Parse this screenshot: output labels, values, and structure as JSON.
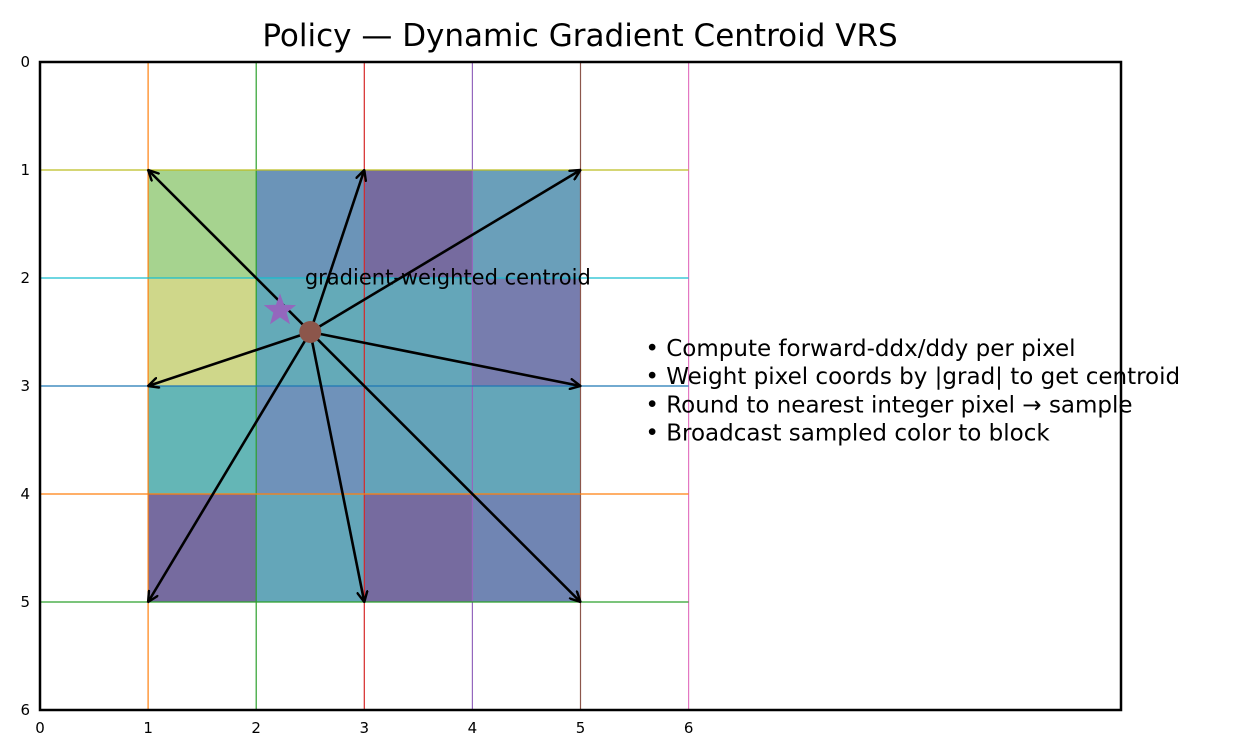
{
  "chart_data": {
    "type": "diagram",
    "title": "Policy — Dynamic Gradient Centroid VRS",
    "xlim": [
      0,
      10
    ],
    "ylim": [
      6,
      0
    ],
    "x_ticks": [
      "0",
      "1",
      "2",
      "3",
      "4",
      "5",
      "6"
    ],
    "y_ticks": [
      "0",
      "1",
      "2",
      "3",
      "4",
      "5",
      "6"
    ],
    "grid_lines": {
      "vertical": [
        {
          "x": 1,
          "color": "#ff7f0e"
        },
        {
          "x": 2,
          "color": "#2ca02c"
        },
        {
          "x": 3,
          "color": "#d62728"
        },
        {
          "x": 4,
          "color": "#9467bd"
        },
        {
          "x": 5,
          "color": "#8c564b"
        },
        {
          "x": 6,
          "color": "#e377c2"
        }
      ],
      "horizontal": [
        {
          "y": 1,
          "color": "#bcbd22"
        },
        {
          "y": 2,
          "color": "#17becf"
        },
        {
          "y": 3,
          "color": "#1f77b4"
        },
        {
          "y": 4,
          "color": "#ff7f0e"
        },
        {
          "y": 5,
          "color": "#2ca02c"
        }
      ],
      "extent": [
        0,
        6
      ]
    },
    "block_cells": [
      {
        "col": 1,
        "row": 1,
        "color": "#a6d38f"
      },
      {
        "col": 2,
        "row": 1,
        "color": "#6b94b8"
      },
      {
        "col": 3,
        "row": 1,
        "color": "#766b9f"
      },
      {
        "col": 4,
        "row": 1,
        "color": "#6a9fba"
      },
      {
        "col": 1,
        "row": 2,
        "color": "#cfd78a"
      },
      {
        "col": 2,
        "row": 2,
        "color": "#64aab8"
      },
      {
        "col": 3,
        "row": 2,
        "color": "#64a6b9"
      },
      {
        "col": 4,
        "row": 2,
        "color": "#777dae"
      },
      {
        "col": 1,
        "row": 3,
        "color": "#64b6b6"
      },
      {
        "col": 2,
        "row": 3,
        "color": "#6f92ba"
      },
      {
        "col": 3,
        "row": 3,
        "color": "#64a3b9"
      },
      {
        "col": 4,
        "row": 3,
        "color": "#64a6b9"
      },
      {
        "col": 1,
        "row": 4,
        "color": "#766b9f"
      },
      {
        "col": 2,
        "row": 4,
        "color": "#64a6b9"
      },
      {
        "col": 3,
        "row": 4,
        "color": "#766b9f"
      },
      {
        "col": 4,
        "row": 4,
        "color": "#7085b3"
      }
    ],
    "center": {
      "x": 2.5,
      "y": 2.5,
      "color": "#8c564b"
    },
    "centroid": {
      "x": 2.22,
      "y": 2.3,
      "color": "#9467bd"
    },
    "arrows": [
      {
        "x": 1,
        "y": 1
      },
      {
        "x": 3,
        "y": 1
      },
      {
        "x": 5,
        "y": 1
      },
      {
        "x": 1,
        "y": 3
      },
      {
        "x": 5,
        "y": 3
      },
      {
        "x": 1,
        "y": 5
      },
      {
        "x": 3,
        "y": 5
      },
      {
        "x": 5,
        "y": 5
      }
    ],
    "annotation": {
      "text": "gradient-weighted centroid",
      "x": 2.45,
      "y": 2.06
    },
    "notes": {
      "x": 5.6,
      "y": 2.72,
      "lines": [
        "• Compute forward-ddx/ddy per pixel",
        "• Weight pixel coords by |grad| to get centroid",
        "• Round to nearest integer pixel → sample",
        "• Broadcast sampled color to block"
      ]
    }
  }
}
